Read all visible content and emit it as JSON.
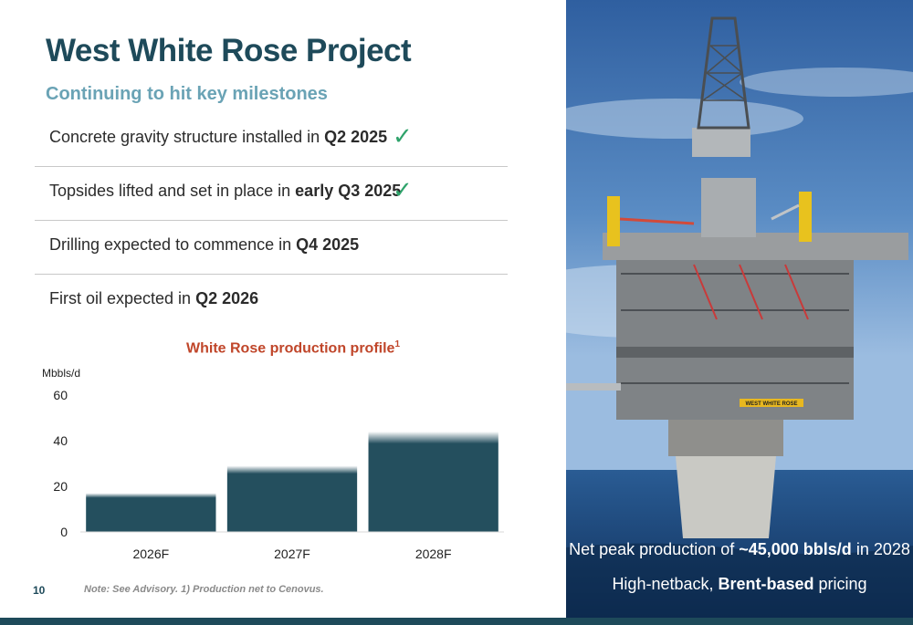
{
  "slide": {
    "title": "West White Rose Project",
    "subtitle": "Continuing to hit key milestones",
    "page_number": "10",
    "note": "Note: See Advisory. 1) Production net to Cenovus."
  },
  "milestones": [
    {
      "text": "Concrete gravity structure installed in ",
      "bold": "Q2 2025",
      "check": "✓"
    },
    {
      "text": "Topsides lifted and set in place in ",
      "bold": "early Q3 2025",
      "check": "✓"
    },
    {
      "text": "Drilling expected to commence in ",
      "bold": "Q4 2025",
      "check": ""
    },
    {
      "text": "First oil expected in ",
      "bold": "Q2 2026",
      "check": ""
    }
  ],
  "photo": {
    "platform_label": "WEST WHITE ROSE",
    "caption1_pre": "Net peak production of ",
    "caption1_bold": "~45,000 bbls/d",
    "caption1_post": " in 2028",
    "caption2_pre": "High-netback, ",
    "caption2_bold": "Brent-based",
    "caption2_post": " pricing"
  },
  "colors": {
    "title": "#1e4a5a",
    "subtitle": "#6aa3b5",
    "bar": "#244f5e",
    "chart_title": "#c0462a",
    "check": "#2fa36b"
  },
  "chart_data": {
    "type": "bar",
    "title": "White Rose production profile",
    "title_superscript": "1",
    "ylabel": "Mbbls/d",
    "xlabel": "",
    "categories": [
      "2026F",
      "2027F",
      "2028F"
    ],
    "values": [
      17,
      29,
      44
    ],
    "ylim": [
      0,
      60
    ],
    "yticks": [
      0,
      20,
      40,
      60
    ],
    "grid": false,
    "legend": "none"
  }
}
